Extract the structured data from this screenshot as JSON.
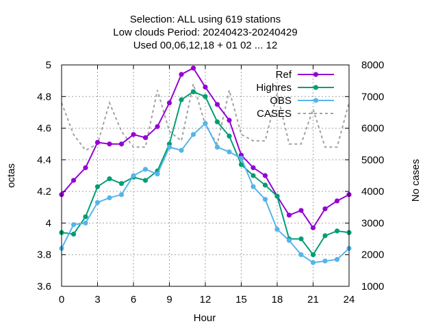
{
  "chart_data": {
    "type": "line",
    "title_lines": [
      "Selection: ALL using   619 stations",
      "Low clouds   Period: 20240423-20240429",
      "Used  00,06,12,18 + 01 02 ... 12"
    ],
    "xlabel": "Hour",
    "ylabel": "octas",
    "y2label": "No cases",
    "xlim": [
      0,
      24
    ],
    "ylim": [
      3.6,
      5.0
    ],
    "y2lim": [
      1000,
      8000
    ],
    "xticks": [
      "0",
      "3",
      "6",
      "9",
      "12",
      "15",
      "18",
      "21",
      "24"
    ],
    "yticks": [
      "3.6",
      "3.8",
      "4",
      "4.2",
      "4.4",
      "4.6",
      "4.8",
      "5"
    ],
    "y2ticks": [
      "1000",
      "2000",
      "3000",
      "4000",
      "5000",
      "6000",
      "7000",
      "8000"
    ],
    "grid": true,
    "legend_position": "top-right",
    "x": [
      0,
      1,
      2,
      3,
      4,
      5,
      6,
      7,
      8,
      9,
      10,
      11,
      12,
      13,
      14,
      15,
      16,
      17,
      18,
      19,
      20,
      21,
      22,
      23,
      24
    ],
    "series": [
      {
        "name": "Ref",
        "color": "#9400d3",
        "axis": "y",
        "style": "line-points",
        "values": [
          4.18,
          4.27,
          4.35,
          4.51,
          4.5,
          4.5,
          4.56,
          4.54,
          4.61,
          4.76,
          4.94,
          4.98,
          4.86,
          4.75,
          4.65,
          4.43,
          4.35,
          4.3,
          4.17,
          4.05,
          4.08,
          3.97,
          4.09,
          4.14,
          4.18
        ]
      },
      {
        "name": "Highres",
        "color": "#009e73",
        "axis": "y",
        "style": "line-points",
        "values": [
          3.94,
          3.93,
          4.04,
          4.23,
          4.28,
          4.25,
          4.29,
          4.27,
          4.33,
          4.5,
          4.78,
          4.83,
          4.8,
          4.64,
          4.55,
          4.37,
          4.3,
          4.24,
          4.17,
          3.9,
          3.9,
          3.8,
          3.92,
          3.95,
          3.94
        ]
      },
      {
        "name": "OBS",
        "color": "#56b4e9",
        "axis": "y",
        "style": "line-points",
        "values": [
          3.84,
          3.99,
          4.0,
          4.13,
          4.16,
          4.18,
          4.3,
          4.34,
          4.31,
          4.48,
          4.46,
          4.56,
          4.63,
          4.48,
          4.45,
          4.41,
          4.23,
          4.15,
          3.96,
          3.89,
          3.8,
          3.75,
          3.76,
          3.77,
          3.84
        ]
      },
      {
        "name": "CASES",
        "color": "#a0a0a0",
        "axis": "y2",
        "style": "dashed-line",
        "values": [
          6800,
          5800,
          5300,
          5500,
          6800,
          5900,
          5400,
          5400,
          7200,
          5900,
          5600,
          7400,
          6100,
          5500,
          7200,
          5800,
          5600,
          5600,
          7100,
          5500,
          5500,
          6600,
          5400,
          5400,
          6800
        ]
      }
    ]
  }
}
